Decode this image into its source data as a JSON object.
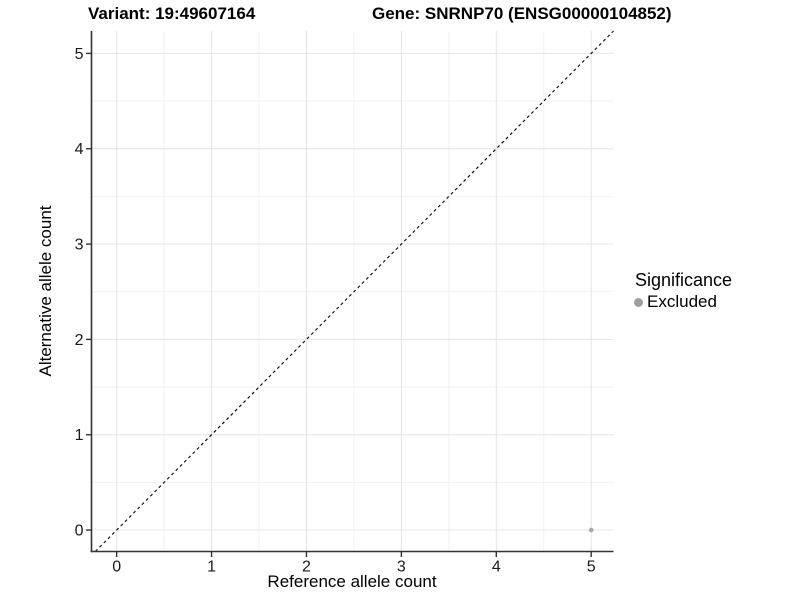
{
  "chart_data": {
    "type": "scatter",
    "title_left": "Variant: 19:49607164",
    "title_right": "Gene: SNRNP70 (ENSG00000104852)",
    "xlabel": "Reference allele count",
    "ylabel": "Alternative allele count",
    "xlim": [
      -0.265,
      5.235
    ],
    "ylim": [
      -0.225,
      5.235
    ],
    "x_ticks": [
      0,
      1,
      2,
      3,
      4,
      5
    ],
    "y_ticks": [
      0,
      1,
      2,
      3,
      4,
      5
    ],
    "x_minor_ticks": [
      0.5,
      1.5,
      2.5,
      3.5,
      4.5
    ],
    "y_minor_ticks": [
      0.5,
      1.5,
      2.5,
      3.5,
      4.5
    ],
    "grid": true,
    "reference_line": {
      "type": "identity",
      "style": "dashed",
      "color": "#000000"
    },
    "series": [
      {
        "name": "Excluded",
        "color": "#a8a8a8",
        "point_radius": 2.3,
        "points": [
          {
            "x": 5,
            "y": 0
          }
        ]
      }
    ],
    "legend": {
      "position": "right",
      "title": "Significance",
      "items": [
        {
          "label": "Excluded",
          "color": "#9e9e9e"
        }
      ]
    },
    "colors": {
      "grid_major": "#e4e4e4",
      "grid_minor": "#f1f1f1",
      "axis_line": "#333333",
      "tick_mark": "#333333",
      "tick_text": "#1a1a1a",
      "title_text": "#000000"
    }
  }
}
